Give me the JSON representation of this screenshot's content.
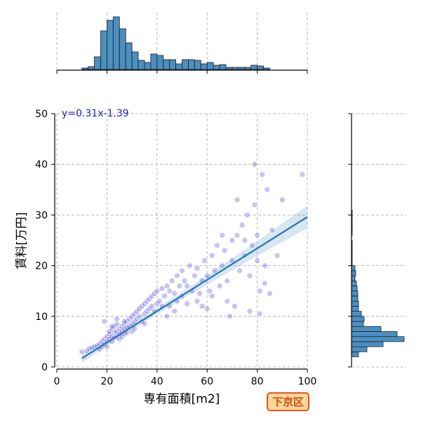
{
  "badge": "下京区",
  "chart_data": [
    {
      "type": "scatter",
      "xlabel": "専有面積[m2]",
      "ylabel": "賃料[万円]",
      "xlim": [
        0,
        100
      ],
      "ylim": [
        0,
        50
      ],
      "x_ticks": [
        "0",
        "20",
        "40",
        "60",
        "80",
        "100"
      ],
      "y_ticks": [
        "0",
        "10",
        "20",
        "30",
        "40",
        "50"
      ],
      "grid": true,
      "point_color": "#3a34c8",
      "regression": {
        "slope": 0.31,
        "intercept": -1.39,
        "x_range": [
          10,
          100
        ],
        "label": "y=0.31x-1.39",
        "color": "#1f77b4"
      },
      "points": [
        [
          10,
          3.0
        ],
        [
          12,
          3.2
        ],
        [
          13,
          3.6
        ],
        [
          14,
          3.8
        ],
        [
          15,
          4.0
        ],
        [
          16,
          4.2
        ],
        [
          17,
          4.5
        ],
        [
          17,
          3.5
        ],
        [
          18,
          5.0
        ],
        [
          18,
          4.0
        ],
        [
          19,
          5.5
        ],
        [
          19,
          4.5
        ],
        [
          19,
          9.0
        ],
        [
          20,
          6.0
        ],
        [
          20,
          5.0
        ],
        [
          20,
          4.0
        ],
        [
          21,
          6.5
        ],
        [
          21,
          5.5
        ],
        [
          21,
          7.0
        ],
        [
          22,
          6.0
        ],
        [
          22,
          5.0
        ],
        [
          22,
          7.5
        ],
        [
          23,
          6.8
        ],
        [
          23,
          5.8
        ],
        [
          23,
          8.0
        ],
        [
          24,
          7.0
        ],
        [
          24,
          6.0
        ],
        [
          24,
          8.5
        ],
        [
          25,
          7.5
        ],
        [
          25,
          6.5
        ],
        [
          25,
          5.5
        ],
        [
          26,
          8.0
        ],
        [
          26,
          7.0
        ],
        [
          26,
          6.0
        ],
        [
          27,
          8.5
        ],
        [
          27,
          7.5
        ],
        [
          27,
          6.5
        ],
        [
          28,
          9.0
        ],
        [
          28,
          7.8
        ],
        [
          28,
          6.8
        ],
        [
          29,
          9.5
        ],
        [
          29,
          8.0
        ],
        [
          30,
          10.0
        ],
        [
          30,
          8.5
        ],
        [
          30,
          7.0
        ],
        [
          31,
          10.5
        ],
        [
          31,
          9.0
        ],
        [
          32,
          11.0
        ],
        [
          32,
          9.5
        ],
        [
          33,
          11.5
        ],
        [
          33,
          10.0
        ],
        [
          34,
          12.0
        ],
        [
          34,
          9.0
        ],
        [
          35,
          12.5
        ],
        [
          35,
          10.5
        ],
        [
          36,
          13.0
        ],
        [
          36,
          11.0
        ],
        [
          37,
          13.5
        ],
        [
          37,
          11.5
        ],
        [
          38,
          14.0
        ],
        [
          38,
          12.0
        ],
        [
          39,
          14.5
        ],
        [
          39,
          11.0
        ],
        [
          40,
          15.0
        ],
        [
          40,
          12.5
        ],
        [
          41,
          13.0
        ],
        [
          42,
          15.5
        ],
        [
          42,
          12.0
        ],
        [
          43,
          14.0
        ],
        [
          44,
          16.0
        ],
        [
          45,
          15.0
        ],
        [
          45,
          12.0
        ],
        [
          46,
          17.0
        ],
        [
          47,
          14.5
        ],
        [
          48,
          18.0
        ],
        [
          48,
          13.0
        ],
        [
          49,
          16.0
        ],
        [
          50,
          19.0
        ],
        [
          50,
          14.0
        ],
        [
          51,
          17.0
        ],
        [
          52,
          16.0
        ],
        [
          53,
          20.0
        ],
        [
          54,
          15.0
        ],
        [
          55,
          18.0
        ],
        [
          56,
          19.5
        ],
        [
          57,
          14.5
        ],
        [
          58,
          17.0
        ],
        [
          58,
          12.0
        ],
        [
          59,
          21.0
        ],
        [
          60,
          18.0
        ],
        [
          61,
          15.0
        ],
        [
          62,
          22.0
        ],
        [
          63,
          19.0
        ],
        [
          64,
          24.0
        ],
        [
          65,
          16.0
        ],
        [
          66,
          20.0
        ],
        [
          67,
          23.0
        ],
        [
          68,
          17.0
        ],
        [
          69,
          10.0
        ],
        [
          70,
          25.0
        ],
        [
          70,
          21.0
        ],
        [
          71,
          12.0
        ],
        [
          72,
          26.0
        ],
        [
          72,
          33.0
        ],
        [
          73,
          19.0
        ],
        [
          74,
          28.0
        ],
        [
          75,
          22.0
        ],
        [
          76,
          30.0
        ],
        [
          77,
          18.0
        ],
        [
          77,
          11.0
        ],
        [
          78,
          24.0
        ],
        [
          79,
          32.0
        ],
        [
          79,
          40.0
        ],
        [
          80,
          21.0
        ],
        [
          80,
          26.0
        ],
        [
          81,
          15.0
        ],
        [
          81,
          10.5
        ],
        [
          82,
          38.0
        ],
        [
          83,
          20.0
        ],
        [
          84,
          35.0
        ],
        [
          85,
          14.5
        ],
        [
          86,
          27.0
        ],
        [
          88,
          22.0
        ],
        [
          90,
          33.0
        ],
        [
          98,
          38.0
        ],
        [
          22,
          8.0
        ],
        [
          24,
          9.5
        ],
        [
          27,
          9.0
        ],
        [
          31,
          7.5
        ],
        [
          35,
          8.5
        ],
        [
          44,
          10.0
        ],
        [
          47,
          11.0
        ],
        [
          52,
          12.5
        ],
        [
          56,
          13.0
        ],
        [
          60,
          11.5
        ],
        [
          62,
          14.0
        ],
        [
          66,
          26.0
        ],
        [
          68,
          13.0
        ],
        [
          75,
          25.0
        ],
        [
          83,
          16.5
        ]
      ]
    },
    {
      "type": "histogram",
      "orientation": "vertical",
      "variable": "専有面積[m2]",
      "bin_edges": [
        7.5,
        10,
        12.5,
        15,
        17.5,
        20,
        22.5,
        25,
        27.5,
        30,
        32.5,
        35,
        37.5,
        40,
        42.5,
        45,
        47.5,
        50,
        52.5,
        55,
        57.5,
        60,
        62.5,
        65,
        67.5,
        70,
        72.5,
        75,
        77.5,
        80,
        82.5,
        85
      ],
      "counts": [
        0,
        2,
        4,
        18,
        55,
        70,
        75,
        58,
        38,
        25,
        13,
        10,
        22,
        20,
        14,
        14,
        8,
        14,
        14,
        13,
        8,
        10,
        6,
        7,
        3,
        3,
        3,
        3,
        6,
        5,
        2
      ],
      "color": "#4c8fc1"
    },
    {
      "type": "histogram",
      "orientation": "horizontal",
      "variable": "賃料[万円]",
      "bin_edges": [
        2,
        3,
        4,
        5,
        6,
        7,
        8,
        9,
        10,
        11,
        12,
        13,
        14,
        15,
        16,
        17,
        18,
        19,
        20,
        21,
        22,
        23,
        24,
        25,
        26,
        27,
        28,
        29,
        30,
        31,
        32,
        33,
        34,
        35,
        36,
        37,
        38,
        39,
        40,
        41,
        42
      ],
      "counts": [
        10,
        22,
        45,
        75,
        65,
        42,
        17,
        18,
        14,
        10,
        10,
        9,
        9,
        8,
        7,
        5,
        6,
        5,
        1,
        1,
        1,
        1,
        1,
        0,
        1,
        1,
        1,
        1,
        1,
        0,
        0,
        0,
        0,
        0,
        0,
        0,
        0,
        0,
        0,
        0
      ],
      "color": "#4c8fc1"
    }
  ]
}
